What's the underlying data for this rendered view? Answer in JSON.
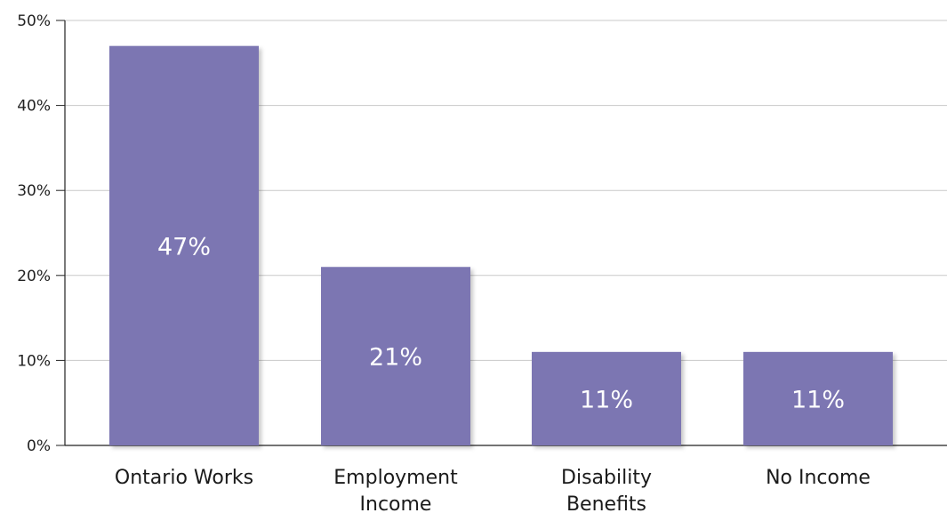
{
  "chart_data": {
    "type": "bar",
    "categories": [
      [
        "Ontario Works"
      ],
      [
        "Employment",
        "Income"
      ],
      [
        "Disability",
        "Benefits"
      ],
      [
        "No Income"
      ]
    ],
    "values": [
      47,
      21,
      11,
      11
    ],
    "data_labels": [
      "47%",
      "21%",
      "11%",
      "11%"
    ],
    "y_ticks": [
      0,
      10,
      20,
      30,
      40,
      50
    ],
    "y_tick_labels": [
      "0%",
      "10%",
      "20%",
      "30%",
      "40%",
      "50%"
    ],
    "ylim": [
      0,
      50
    ],
    "title": "",
    "xlabel": "",
    "ylabel": "",
    "grid": true,
    "legend": "none",
    "colors": {
      "bar": "#7b76b2",
      "grid": "#c8c8c8",
      "axis": "#222222",
      "data_label": "#ffffff"
    }
  }
}
